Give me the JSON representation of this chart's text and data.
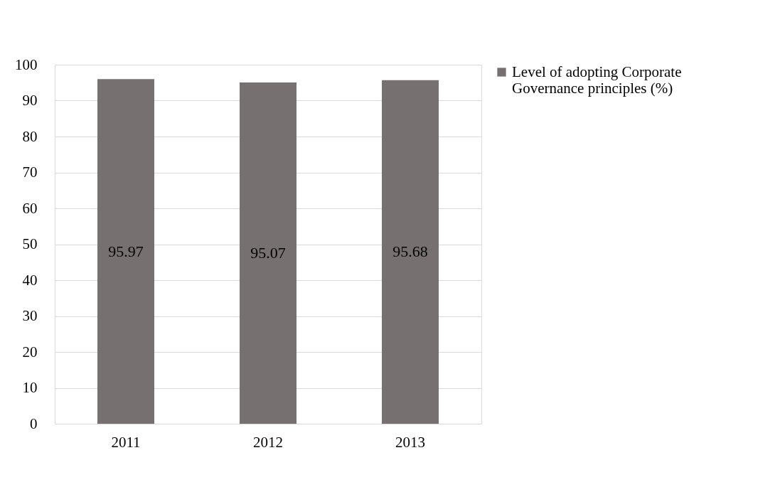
{
  "chart_data": {
    "type": "bar",
    "categories": [
      "2011",
      "2012",
      "2013"
    ],
    "series": [
      {
        "name": "Level of adopting Corporate Governance principles (%)",
        "color": "#767170",
        "values": [
          95.97,
          95.07,
          95.68
        ]
      }
    ],
    "ylim": [
      0,
      100
    ],
    "yticks": [
      0,
      10,
      20,
      30,
      40,
      50,
      60,
      70,
      80,
      90,
      100
    ],
    "grid": "y",
    "legend": "right",
    "data_labels": true
  }
}
